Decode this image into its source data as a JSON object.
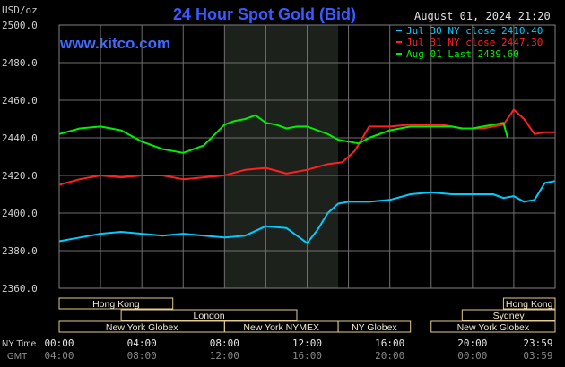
{
  "header": {
    "title": "24 Hour Spot Gold (Bid)",
    "unit_label": "USD/oz",
    "brand": "www.kitco.com",
    "timestamp": "August 01, 2024 21:20",
    "title_color": "#3a5aff",
    "brand_color": "#3f6cff"
  },
  "chart_data": {
    "type": "line",
    "title": "24 Hour Spot Gold (Bid)",
    "ylabel": "USD/oz",
    "ylim": [
      2360,
      2500
    ],
    "y_ticks": [
      "2500.0",
      "2480.0",
      "2460.0",
      "2440.0",
      "2420.0",
      "2400.0",
      "2380.0",
      "2360.0"
    ],
    "y_tick_values": [
      2500,
      2480,
      2460,
      2440,
      2420,
      2400,
      2380,
      2360
    ],
    "x_range_hours": [
      0,
      24
    ],
    "grid": true,
    "highlight_hours": [
      8,
      13.5
    ],
    "legend": [
      {
        "text": "Jul 30 NY close 2410.40",
        "color": "#00ccff"
      },
      {
        "text": "Jul 31 NY close 2447.30",
        "color": "#ff2020"
      },
      {
        "text": "Aug 01 Last 2439.60",
        "color": "#00ee00"
      }
    ],
    "legend_placement": "top-right",
    "series": [
      {
        "name": "Jul 30 NY close 2410.40",
        "color": "#00ccff",
        "x": [
          0,
          1,
          2,
          3,
          4,
          5,
          6,
          7,
          8,
          9,
          10,
          11,
          11.5,
          12,
          12.5,
          13,
          13.5,
          14,
          15,
          16,
          17,
          18,
          19,
          20,
          21,
          21.5,
          22,
          22.5,
          23,
          23.5,
          23.98
        ],
        "y": [
          2385,
          2387,
          2389,
          2390,
          2389,
          2388,
          2389,
          2388,
          2387,
          2388,
          2393,
          2392,
          2388,
          2384,
          2391,
          2400,
          2405,
          2406,
          2406,
          2407,
          2410,
          2411,
          2410,
          2410,
          2410,
          2408,
          2409,
          2406,
          2407,
          2416,
          2417
        ]
      },
      {
        "name": "Jul 31 NY close 2447.30",
        "color": "#ff2020",
        "x": [
          0,
          1,
          2,
          3,
          4,
          5,
          6,
          7,
          8,
          9,
          10,
          11,
          12,
          13,
          13.7,
          14.3,
          15,
          16,
          17,
          18,
          18.5,
          19,
          19.5,
          20,
          20.5,
          21,
          21.5,
          22,
          22.5,
          23,
          23.5,
          23.98
        ],
        "y": [
          2415,
          2418,
          2420,
          2419,
          2420,
          2420,
          2418,
          2419,
          2420,
          2423,
          2424,
          2421,
          2423,
          2426,
          2427,
          2433,
          2446,
          2446,
          2447,
          2447,
          2447,
          2446,
          2445,
          2445,
          2445,
          2446,
          2447,
          2455,
          2450,
          2442,
          2443,
          2443
        ]
      },
      {
        "name": "Aug 01 Last 2439.60",
        "color": "#00ee00",
        "x": [
          0,
          1,
          2,
          3,
          4,
          5,
          6,
          7,
          8,
          8.5,
          9,
          9.5,
          10,
          10.5,
          11,
          11.5,
          12,
          12.5,
          13,
          13.5,
          14,
          14.5,
          15,
          16,
          17,
          18,
          18.5,
          19,
          19.5,
          20,
          20.5,
          21,
          21.5,
          21.7
        ],
        "y": [
          2442,
          2445,
          2446,
          2444,
          2438,
          2434,
          2432,
          2436,
          2447,
          2449,
          2450,
          2452,
          2448,
          2447,
          2445,
          2446,
          2446,
          2444,
          2442,
          2439,
          2438,
          2437,
          2440,
          2444,
          2446,
          2446,
          2446,
          2446,
          2445,
          2445,
          2446,
          2447,
          2448,
          2440
        ]
      }
    ],
    "sessions": [
      {
        "label": "Hong Kong",
        "start": 0,
        "end": 5.5,
        "row": 0
      },
      {
        "label": "Hong Kong",
        "start": 21.5,
        "end": 24,
        "row": 0
      },
      {
        "label": "London",
        "start": 3,
        "end": 11.5,
        "row": 1
      },
      {
        "label": "Sydney",
        "start": 19.5,
        "end": 24,
        "row": 1
      },
      {
        "label": "New York Globex",
        "start": 0,
        "end": 8,
        "row": 2
      },
      {
        "label": "New York NYMEX",
        "start": 8,
        "end": 13.5,
        "row": 2
      },
      {
        "label": "NY Globex",
        "start": 13.5,
        "end": 17,
        "row": 2
      },
      {
        "label": "New York Globex",
        "start": 18,
        "end": 24,
        "row": 2
      }
    ],
    "session_color": "#e6cc8c",
    "time_rows": {
      "ny_label": "NY Time",
      "gmt_label": "GMT",
      "ny": [
        "00:00",
        "04:00",
        "08:00",
        "12:00",
        "16:00",
        "20:00",
        "23:59"
      ],
      "gmt": [
        "04:00",
        "08:00",
        "12:00",
        "16:00",
        "20:00",
        "00:00",
        "03:59"
      ],
      "hours": [
        0,
        4,
        8,
        12,
        16,
        20,
        23.98
      ]
    }
  }
}
